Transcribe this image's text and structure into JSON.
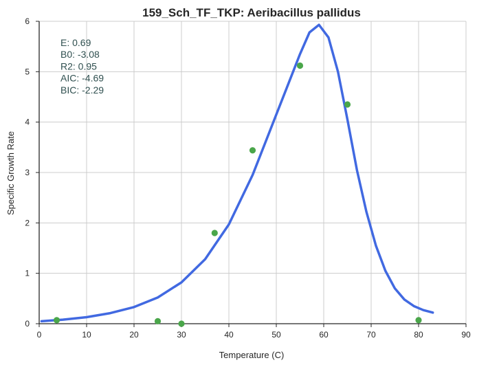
{
  "chart_data": {
    "type": "line",
    "title": "159_Sch_TF_TKP: Aeribacillus pallidus",
    "xlabel": "Temperature (C)",
    "ylabel": "Specific Growth Rate",
    "xlim": [
      0,
      90
    ],
    "ylim": [
      0,
      6
    ],
    "xticks": [
      "0",
      "10",
      "20",
      "30",
      "40",
      "50",
      "60",
      "70",
      "80",
      "90"
    ],
    "yticks": [
      "0",
      "1",
      "2",
      "3",
      "4",
      "5",
      "6"
    ],
    "grid": true,
    "annotation": [
      "E:  0.69",
      "B0:  -3.08",
      "R2:  0.95",
      "AIC: -4.69",
      "BIC: -2.29"
    ],
    "colors": {
      "line": "#4169e1",
      "points": "#4aa64a"
    },
    "series": [
      {
        "type": "line",
        "x": [
          0.5,
          5,
          10,
          15,
          20,
          25,
          30,
          35,
          40,
          45,
          50,
          55,
          57,
          59,
          61,
          63,
          65,
          67,
          69,
          71,
          73,
          75,
          77,
          79,
          81,
          83
        ],
        "y": [
          0.05,
          0.08,
          0.13,
          0.21,
          0.33,
          0.52,
          0.82,
          1.28,
          1.97,
          2.95,
          4.15,
          5.35,
          5.78,
          5.93,
          5.68,
          5.0,
          4.05,
          3.05,
          2.22,
          1.55,
          1.05,
          0.7,
          0.48,
          0.35,
          0.27,
          0.22
        ]
      },
      {
        "type": "scatter",
        "x": [
          3.7,
          25,
          30,
          37,
          45,
          55,
          65,
          80
        ],
        "y": [
          0.07,
          0.05,
          0.0,
          1.8,
          3.44,
          5.12,
          4.35,
          0.07
        ]
      }
    ]
  }
}
